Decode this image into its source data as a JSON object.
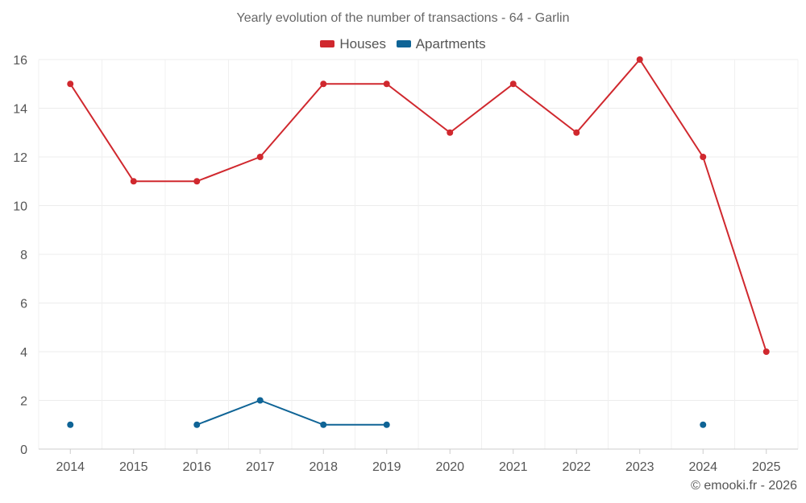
{
  "chart_data": {
    "type": "line",
    "title": "Yearly evolution of the number of transactions - 64 - Garlin",
    "categories": [
      "2014",
      "2015",
      "2016",
      "2017",
      "2018",
      "2019",
      "2020",
      "2021",
      "2022",
      "2023",
      "2024",
      "2025"
    ],
    "series": [
      {
        "name": "Houses",
        "color": "#d0282e",
        "values": [
          15,
          11,
          11,
          12,
          15,
          15,
          13,
          15,
          13,
          16,
          12,
          4
        ]
      },
      {
        "name": "Apartments",
        "color": "#0f6496",
        "values": [
          1,
          null,
          1,
          2,
          1,
          1,
          null,
          null,
          null,
          null,
          1,
          null
        ]
      }
    ],
    "ylim": [
      0,
      16
    ],
    "yticks": [
      0,
      2,
      4,
      6,
      8,
      10,
      12,
      14,
      16
    ],
    "xlabel": "",
    "ylabel": "",
    "grid": true,
    "legend": "top-center"
  },
  "credit": "© emooki.fr - 2026"
}
